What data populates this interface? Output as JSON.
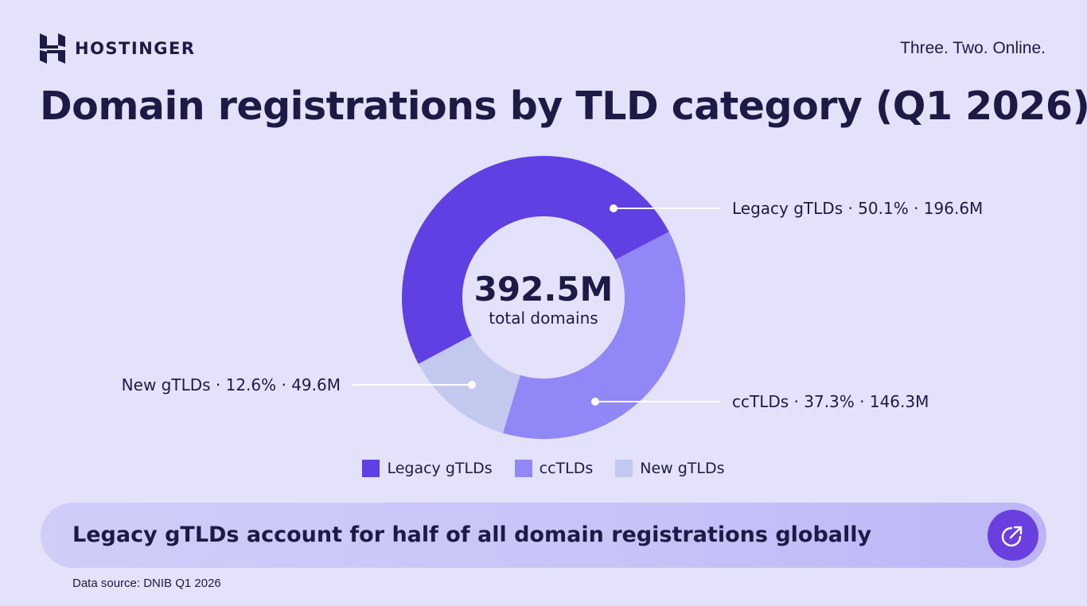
{
  "header": {
    "brand_name": "HOSTINGER",
    "tagline": "Three. Two. Online.",
    "title": "Domain registrations by TLD category (Q1 2026)"
  },
  "chart_data": {
    "type": "pie",
    "title": "Domain registrations by TLD category (Q1 2026)",
    "center_value": "392.5M",
    "center_label": "total domains",
    "total": 392.5,
    "unit": "M",
    "slices": [
      {
        "name": "Legacy gTLDs",
        "percent": 50.1,
        "value": 196.6,
        "color": "#6040e2",
        "label": "Legacy gTLDs · 50.1% · 196.6M"
      },
      {
        "name": "ccTLDs",
        "percent": 37.3,
        "value": 146.3,
        "color": "#9187f6",
        "label": "ccTLDs · 37.3% · 146.3M"
      },
      {
        "name": "New gTLDs",
        "percent": 12.6,
        "value": 49.6,
        "color": "#c2c8ee",
        "label": "New gTLDs · 12.6% · 49.6M"
      }
    ],
    "legend_position": "bottom"
  },
  "legend": [
    {
      "label": "Legacy gTLDs",
      "color": "#6040e2"
    },
    {
      "label": "ccTLDs",
      "color": "#9187f6"
    },
    {
      "label": "New gTLDs",
      "color": "#c2c8ee"
    }
  ],
  "banner": {
    "text": "Legacy gTLDs account for half of all domain registrations globally",
    "icon": "external-link-icon",
    "button_color": "#6a3fe0"
  },
  "footer": {
    "source": "Data source: DNIB Q1 2026"
  },
  "colors": {
    "background": "#e3e2fa",
    "text": "#1d1b46",
    "accent": "#6a3fe0"
  }
}
